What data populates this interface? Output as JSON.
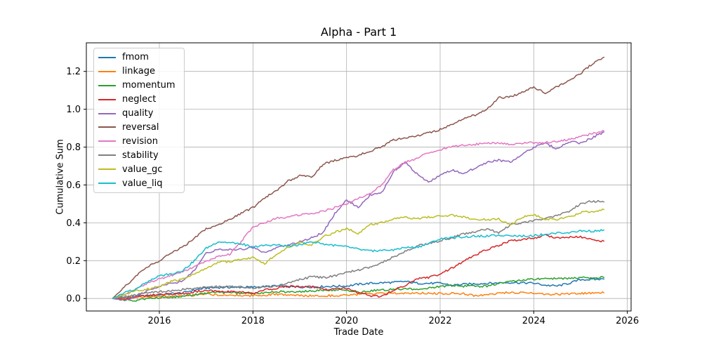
{
  "title": "Alpha - Part 1",
  "chart_data": {
    "type": "line",
    "title": "Alpha - Part 1",
    "xlabel": "Trade Date",
    "ylabel": "Cumulative Sum",
    "xlim": [
      2014.44,
      2026.08
    ],
    "ylim": [
      -0.066,
      1.351
    ],
    "x_ticks": [
      2016,
      2018,
      2020,
      2022,
      2024,
      2026
    ],
    "y_ticks": [
      0.0,
      0.2,
      0.4,
      0.6,
      0.8,
      1.0,
      1.2
    ],
    "grid": true,
    "grid_color": "#b0b0b0",
    "background_color": "#ffffff",
    "legend_position": "upper-left",
    "x_start": 2015.0,
    "x_step": 0.25,
    "series": [
      {
        "name": "fmom",
        "color": "#1f77b4",
        "values": [
          0.0,
          0.005,
          0.01,
          0.015,
          0.02,
          0.025,
          0.03,
          0.045,
          0.055,
          0.058,
          0.059,
          0.06,
          0.06,
          0.063,
          0.066,
          0.062,
          0.06,
          0.062,
          0.063,
          0.065,
          0.066,
          0.075,
          0.08,
          0.083,
          0.085,
          0.09,
          0.081,
          0.08,
          0.081,
          0.07,
          0.075,
          0.078,
          0.08,
          0.082,
          0.085,
          0.083,
          0.081,
          0.07,
          0.066,
          0.08,
          0.1,
          0.1,
          0.103
        ]
      },
      {
        "name": "linkage",
        "color": "#ff7f0e",
        "values": [
          0.0,
          0.003,
          0.005,
          0.008,
          0.01,
          0.012,
          0.015,
          0.018,
          0.022,
          0.02,
          0.018,
          0.016,
          0.015,
          0.018,
          0.022,
          0.018,
          0.015,
          0.014,
          0.015,
          0.016,
          0.018,
          0.022,
          0.025,
          0.026,
          0.026,
          0.028,
          0.03,
          0.028,
          0.026,
          0.027,
          0.026,
          0.015,
          0.018,
          0.03,
          0.03,
          0.03,
          0.03,
          0.022,
          0.022,
          0.025,
          0.026,
          0.028,
          0.03
        ]
      },
      {
        "name": "momentum",
        "color": "#2ca02c",
        "values": [
          0.0,
          -0.008,
          -0.01,
          -0.002,
          0.005,
          0.008,
          0.01,
          0.02,
          0.03,
          0.032,
          0.03,
          0.028,
          0.025,
          0.03,
          0.037,
          0.036,
          0.037,
          0.04,
          0.044,
          0.045,
          0.045,
          0.03,
          0.04,
          0.045,
          0.048,
          0.05,
          0.05,
          0.055,
          0.063,
          0.07,
          0.065,
          0.065,
          0.066,
          0.08,
          0.092,
          0.098,
          0.103,
          0.104,
          0.105,
          0.107,
          0.11,
          0.11,
          0.111
        ]
      },
      {
        "name": "neglect",
        "color": "#d62728",
        "values": [
          0.0,
          -0.005,
          0.01,
          0.015,
          0.02,
          0.022,
          0.025,
          0.035,
          0.044,
          0.04,
          0.037,
          0.033,
          0.03,
          0.045,
          0.055,
          0.065,
          0.06,
          0.065,
          0.048,
          0.05,
          0.055,
          0.03,
          0.015,
          0.01,
          0.044,
          0.07,
          0.103,
          0.11,
          0.13,
          0.16,
          0.196,
          0.23,
          0.258,
          0.28,
          0.306,
          0.31,
          0.32,
          0.335,
          0.32,
          0.325,
          0.325,
          0.31,
          0.303
        ]
      },
      {
        "name": "quality",
        "color": "#9467bd",
        "values": [
          0.0,
          -0.01,
          0.01,
          0.04,
          0.066,
          0.08,
          0.092,
          0.15,
          0.24,
          0.26,
          0.258,
          0.26,
          0.27,
          0.24,
          0.27,
          0.28,
          0.3,
          0.32,
          0.35,
          0.45,
          0.52,
          0.48,
          0.545,
          0.56,
          0.67,
          0.72,
          0.66,
          0.615,
          0.653,
          0.68,
          0.66,
          0.69,
          0.72,
          0.73,
          0.72,
          0.76,
          0.8,
          0.82,
          0.79,
          0.83,
          0.82,
          0.85,
          0.88
        ]
      },
      {
        "name": "reversal",
        "color": "#8c564b",
        "values": [
          0.0,
          0.06,
          0.12,
          0.17,
          0.2,
          0.24,
          0.27,
          0.32,
          0.37,
          0.385,
          0.42,
          0.45,
          0.48,
          0.53,
          0.57,
          0.62,
          0.65,
          0.64,
          0.71,
          0.73,
          0.745,
          0.755,
          0.78,
          0.8,
          0.838,
          0.845,
          0.86,
          0.875,
          0.893,
          0.92,
          0.95,
          0.97,
          1.0,
          1.06,
          1.065,
          1.09,
          1.115,
          1.085,
          1.12,
          1.15,
          1.19,
          1.24,
          1.275
        ]
      },
      {
        "name": "revision",
        "color": "#e377c2",
        "values": [
          0.0,
          0.02,
          0.05,
          0.08,
          0.103,
          0.12,
          0.14,
          0.17,
          0.196,
          0.22,
          0.233,
          0.3,
          0.38,
          0.4,
          0.425,
          0.43,
          0.443,
          0.45,
          0.46,
          0.48,
          0.5,
          0.53,
          0.555,
          0.6,
          0.68,
          0.72,
          0.74,
          0.77,
          0.786,
          0.8,
          0.81,
          0.815,
          0.82,
          0.82,
          0.815,
          0.82,
          0.823,
          0.825,
          0.83,
          0.84,
          0.855,
          0.87,
          0.886
        ]
      },
      {
        "name": "stability",
        "color": "#7f7f7f",
        "values": [
          0.0,
          0.01,
          0.02,
          0.03,
          0.037,
          0.04,
          0.048,
          0.055,
          0.06,
          0.062,
          0.063,
          0.06,
          0.055,
          0.06,
          0.066,
          0.08,
          0.1,
          0.115,
          0.11,
          0.12,
          0.14,
          0.15,
          0.166,
          0.19,
          0.22,
          0.25,
          0.277,
          0.29,
          0.306,
          0.32,
          0.343,
          0.35,
          0.37,
          0.345,
          0.39,
          0.4,
          0.413,
          0.42,
          0.44,
          0.46,
          0.5,
          0.515,
          0.51
        ]
      },
      {
        "name": "value_gc",
        "color": "#bcbd22",
        "values": [
          0.0,
          0.02,
          0.04,
          0.05,
          0.063,
          0.09,
          0.103,
          0.13,
          0.16,
          0.19,
          0.196,
          0.21,
          0.215,
          0.185,
          0.233,
          0.27,
          0.3,
          0.28,
          0.325,
          0.35,
          0.37,
          0.345,
          0.39,
          0.4,
          0.424,
          0.43,
          0.42,
          0.43,
          0.436,
          0.44,
          0.43,
          0.42,
          0.417,
          0.42,
          0.39,
          0.43,
          0.443,
          0.42,
          0.42,
          0.43,
          0.454,
          0.46,
          0.47
        ]
      },
      {
        "name": "value_liq",
        "color": "#17becf",
        "values": [
          0.0,
          0.03,
          0.05,
          0.09,
          0.118,
          0.13,
          0.148,
          0.2,
          0.266,
          0.3,
          0.295,
          0.29,
          0.27,
          0.28,
          0.284,
          0.275,
          0.284,
          0.3,
          0.288,
          0.28,
          0.273,
          0.26,
          0.251,
          0.255,
          0.258,
          0.27,
          0.27,
          0.29,
          0.314,
          0.32,
          0.325,
          0.33,
          0.33,
          0.335,
          0.335,
          0.33,
          0.332,
          0.34,
          0.345,
          0.35,
          0.358,
          0.355,
          0.362
        ]
      }
    ]
  }
}
